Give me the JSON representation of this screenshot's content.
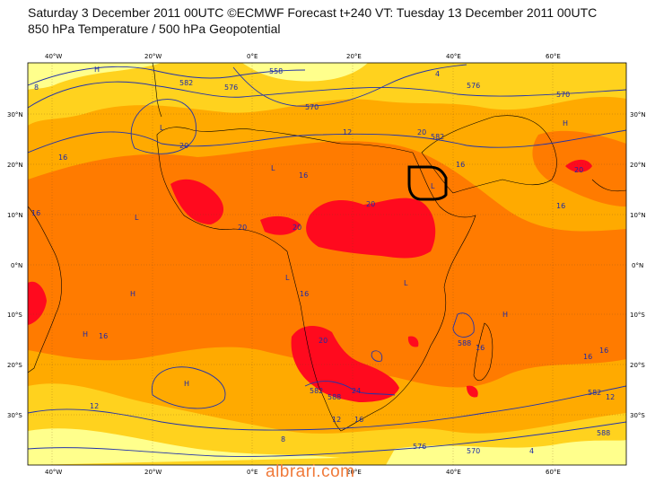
{
  "title_line1": "Saturday 3 December 2011 00UTC ©ECMWF Forecast t+240 VT: Tuesday 13 December 2011 00UTC",
  "title_line2": "850 hPa Temperature / 500 hPa Geopotential",
  "watermark": "albrari.com",
  "axes": {
    "lon_ticks": [
      "40°W",
      "20°W",
      "0°E",
      "20°E",
      "40°E",
      "60°E"
    ],
    "lat_ticks": [
      "30°N",
      "20°N",
      "10°N",
      "0°N",
      "10°S",
      "20°S",
      "30°S"
    ]
  },
  "temperature_labels": [
    "12",
    "16",
    "20",
    "20",
    "20",
    "24",
    "16",
    "16",
    "16",
    "12",
    "8",
    "16",
    "20",
    "16",
    "16",
    "16",
    "12",
    "12",
    "16",
    "4",
    "4",
    "8",
    "20",
    "16",
    "16",
    "20",
    "20"
  ],
  "geopotential_labels": [
    "582",
    "576",
    "558",
    "582",
    "576",
    "570",
    "588",
    "582",
    "582",
    "588",
    "588",
    "570",
    "576",
    "570"
  ],
  "pressure_centers": [
    "H",
    "L",
    "H",
    "L",
    "H",
    "L",
    "H",
    "H",
    "L",
    "L",
    "H",
    "L"
  ],
  "colors": {
    "background": "#ffffff",
    "temp_lt8": "#ffff8c",
    "temp_8_12": "#ffd21e",
    "temp_12_16": "#ffaa00",
    "temp_16_20": "#ff7b00",
    "temp_20_24": "#ff5600",
    "temp_gt24": "#ff0a1e",
    "geopotential_contour": "#2233aa",
    "coastline": "#000000",
    "watermark": "#f07a3a"
  },
  "highlight": "black outline box over the Horn of Africa region"
}
